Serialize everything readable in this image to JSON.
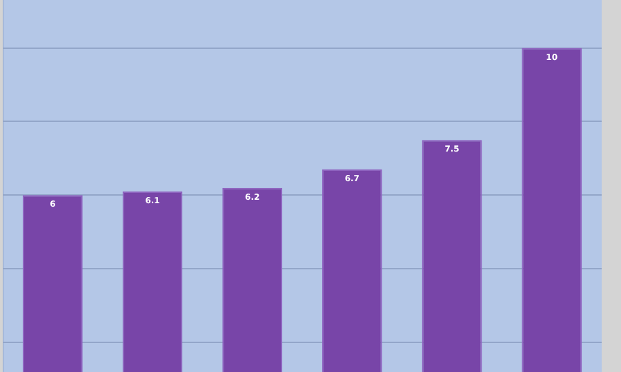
{
  "chart_data": {
    "type": "bar",
    "categories": [
      null,
      null,
      null,
      null,
      null,
      null
    ],
    "values": [
      6,
      6.1,
      6.2,
      6.7,
      7.5,
      10
    ],
    "color": "#7845a8",
    "ylim": [
      1.2,
      11.3
    ],
    "yticks": [
      {
        "value": 2,
        "label": null
      },
      {
        "value": 4,
        "label": null
      },
      {
        "value": 6,
        "label": null
      },
      {
        "value": 8,
        "label": null
      },
      {
        "value": 10,
        "label": null
      }
    ],
    "grid": "y",
    "data_labels": true,
    "legend": false
  }
}
